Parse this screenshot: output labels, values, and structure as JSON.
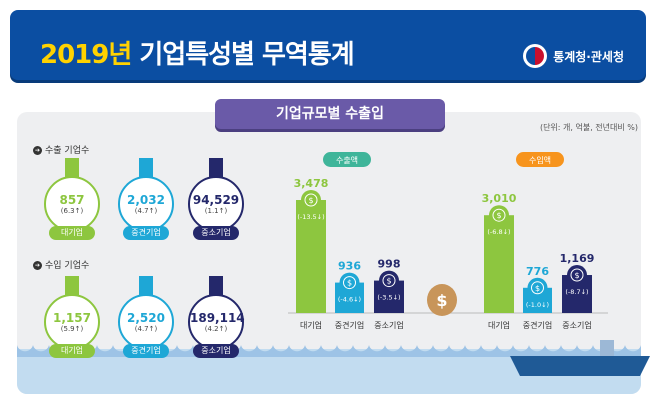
{
  "header": {
    "year": "2019년",
    "title": "기업특성별 무역통계",
    "org": "통계청·관세청"
  },
  "tab": "기업규모별 수출입",
  "unit": "(단위: 개, 억불, 전년대비 %)",
  "export_count": {
    "label": "수출 기업수",
    "items": [
      {
        "name": "대기업",
        "value": "857",
        "change": "(6.3↑)"
      },
      {
        "name": "중견기업",
        "value": "2,032",
        "change": "(4.7↑)"
      },
      {
        "name": "중소기업",
        "value": "94,529",
        "change": "(1.1↑)"
      }
    ]
  },
  "import_count": {
    "label": "수입 기업수",
    "items": [
      {
        "name": "대기업",
        "value": "1,157",
        "change": "(5.9↑)"
      },
      {
        "name": "중견기업",
        "value": "2,520",
        "change": "(4.7↑)"
      },
      {
        "name": "중소기업",
        "value": "189,114",
        "change": "(4.2↑)"
      }
    ]
  },
  "colors": {
    "large": "#8dc63f",
    "mid": "#1ea7d6",
    "small": "#24286b",
    "export": "#3fb59a",
    "import": "#f7941d"
  },
  "chart_data": [
    {
      "type": "bar",
      "title": "수출액",
      "categories": [
        "대기업",
        "중견기업",
        "중소기업"
      ],
      "values": [
        3478,
        936,
        998
      ],
      "labels": [
        "3,478",
        "936",
        "998"
      ],
      "changes": [
        "(-13.5↓)",
        "(-4.6↓)",
        "(-3.5↓)"
      ]
    },
    {
      "type": "bar",
      "title": "수입액",
      "categories": [
        "대기업",
        "중견기업",
        "중소기업"
      ],
      "values": [
        3010,
        776,
        1169
      ],
      "labels": [
        "3,010",
        "776",
        "1,169"
      ],
      "changes": [
        "(-6.8↓)",
        "(-1.0↓)",
        "(-8.7↓)"
      ]
    }
  ]
}
